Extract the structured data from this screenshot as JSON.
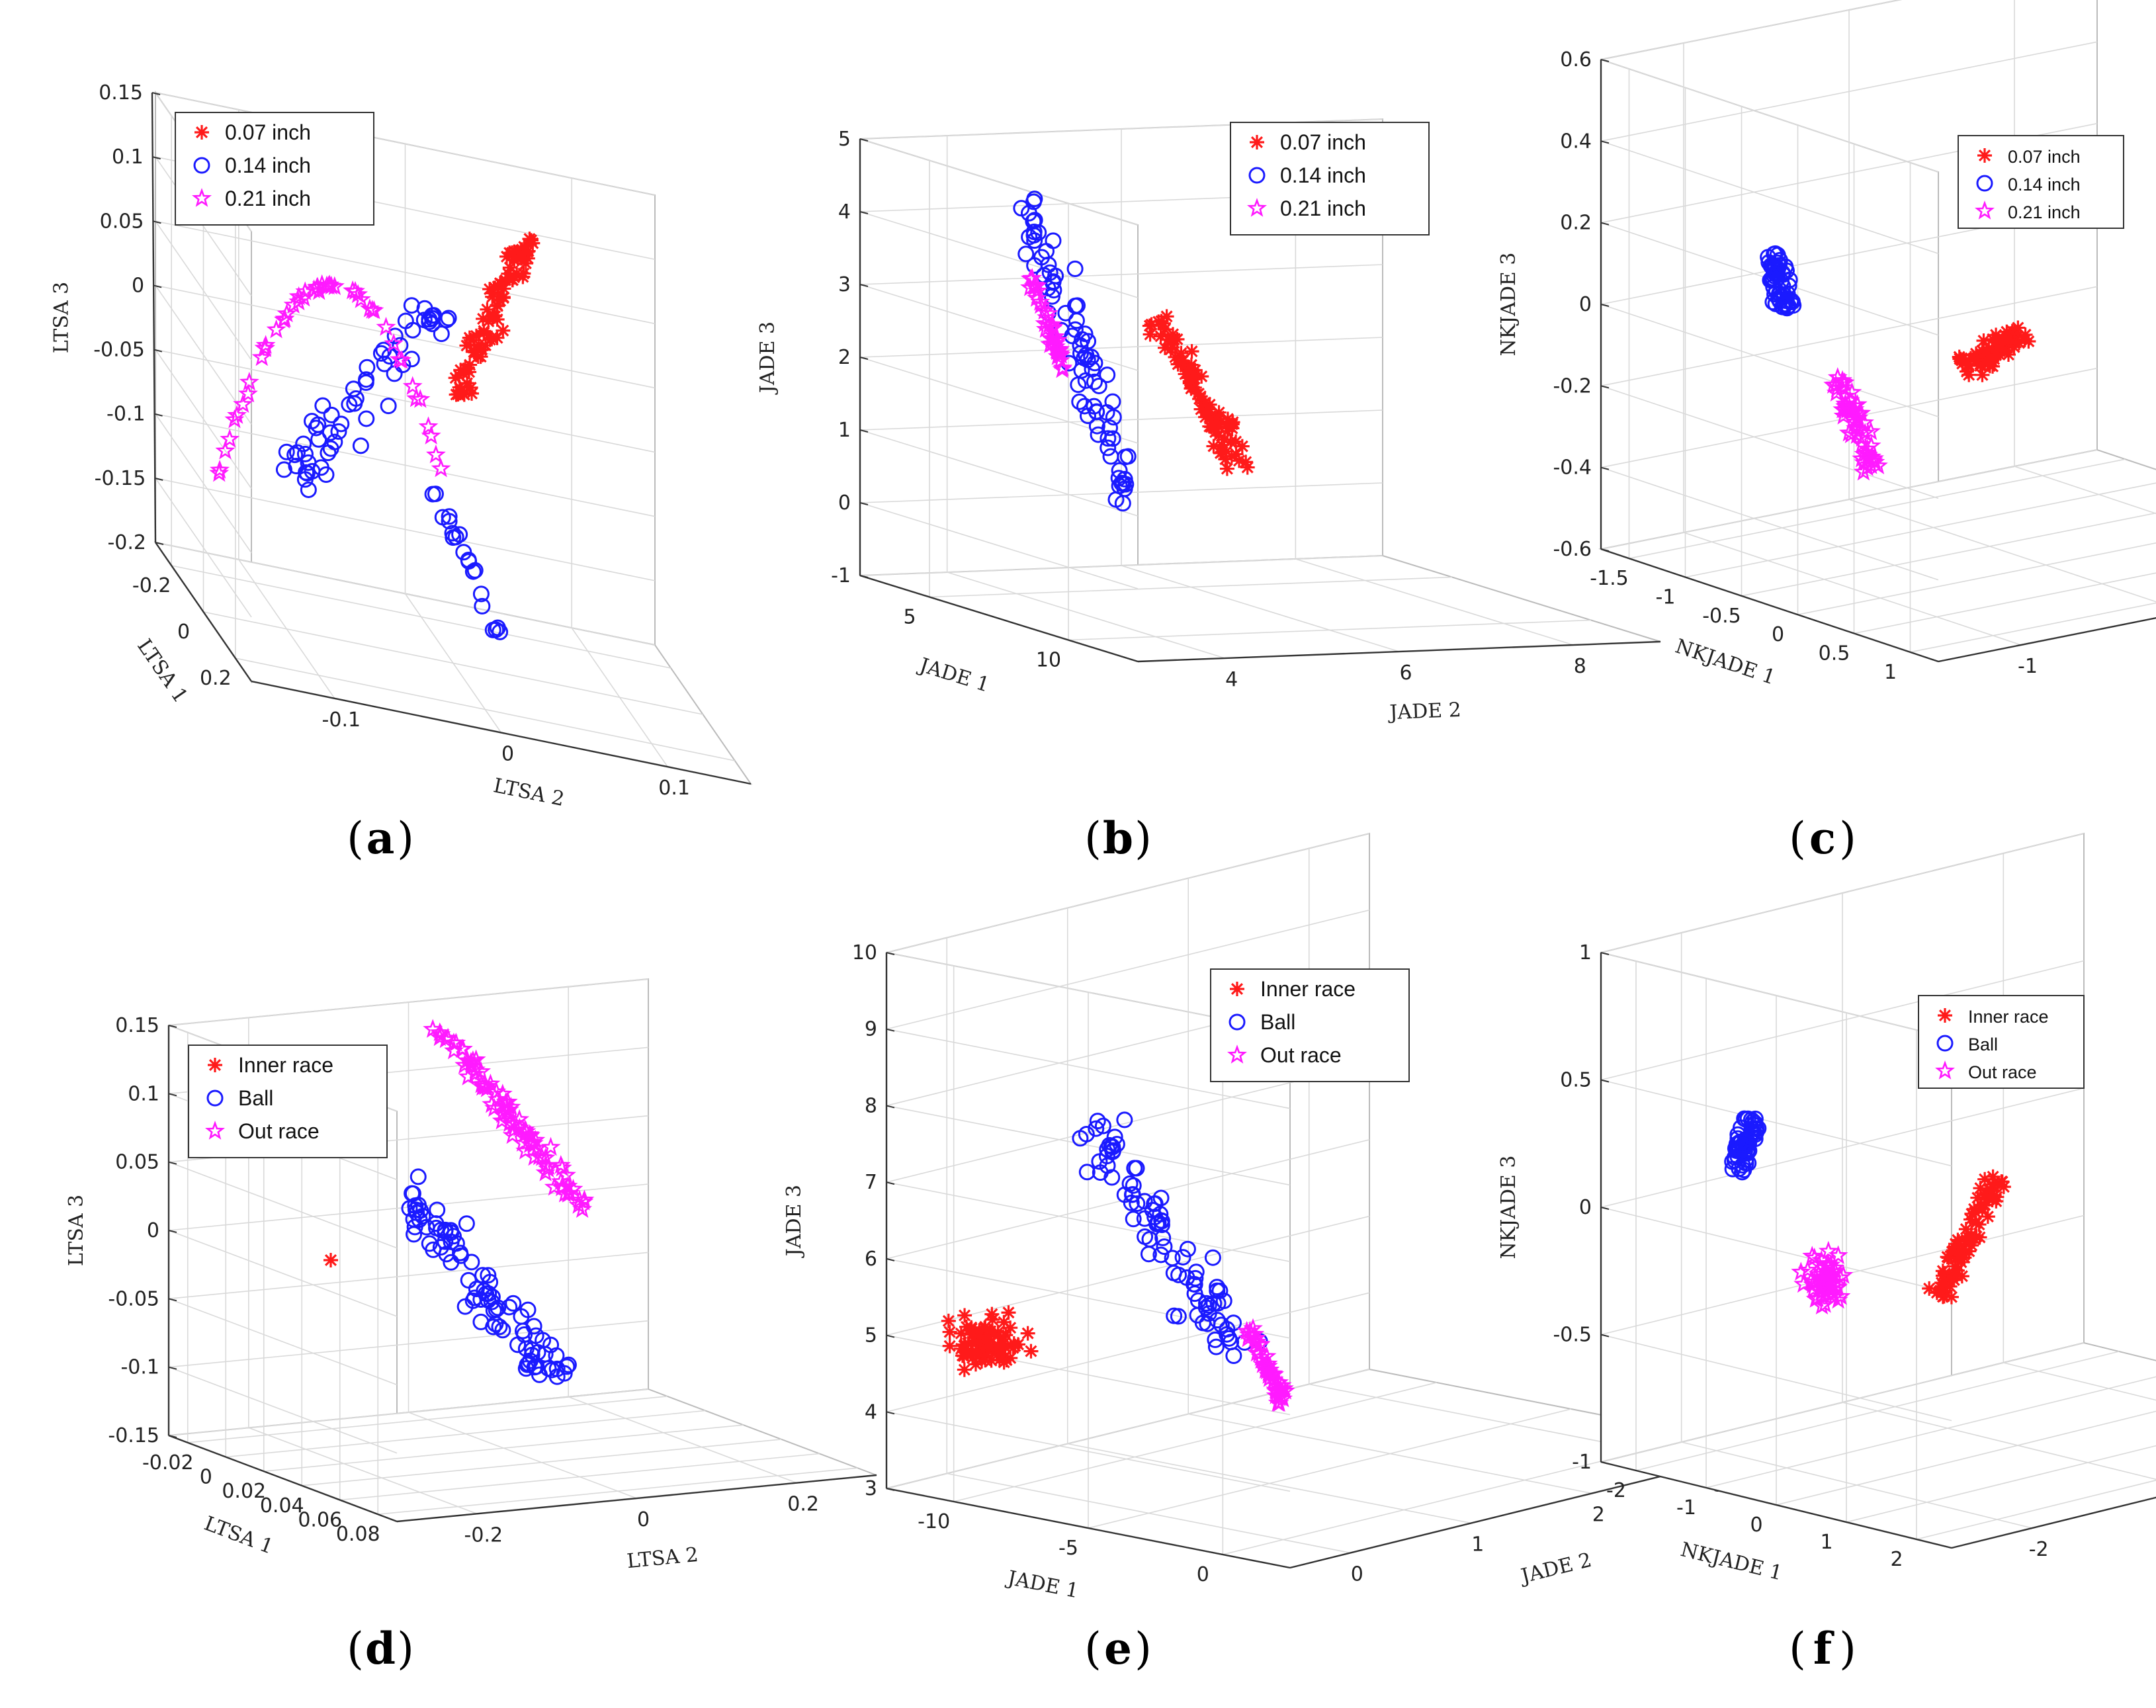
{
  "figure": {
    "colors": {
      "red": "#ff1a1a",
      "blue": "#1a1aff",
      "magenta": "#ff1aff",
      "axis": "#333333",
      "grid": "#d9d9d9"
    }
  },
  "chart_data": [
    {
      "id": "a",
      "type": "scatter3d",
      "caption": "a",
      "xlabel": "LTSA 1",
      "ylabel": "LTSA 2",
      "zlabel": "LTSA 3",
      "xticks": [
        "-0.2",
        "0",
        "0.2"
      ],
      "yticks": [
        "-0.1",
        "0",
        "0.1"
      ],
      "zticks": [
        "-0.2",
        "-0.15",
        "-0.1",
        "-0.05",
        "0",
        "0.05",
        "0.1",
        "0.15"
      ],
      "zlim": [
        -0.2,
        0.15
      ],
      "legend": [
        "0.07 inch",
        "0.14 inch",
        "0.21 inch"
      ],
      "legend_position": "top-left",
      "series": [
        {
          "name": "0.07 inch",
          "marker": "asterisk",
          "color": "red",
          "clusters": [
            {
              "z": [
                -0.06,
                0.08
              ],
              "spread": "diagonal-band",
              "count": 90
            }
          ]
        },
        {
          "name": "0.14 inch",
          "marker": "circle",
          "color": "blue",
          "clusters": [
            {
              "z": [
                -0.15,
                -0.02
              ],
              "spread": "wide",
              "count": 60
            },
            {
              "z": [
                -0.19,
                -0.14
              ],
              "spread": "tail",
              "count": 20
            }
          ]
        },
        {
          "name": "0.21 inch",
          "marker": "star",
          "color": "magenta",
          "clusters": [
            {
              "z": [
                -0.15,
                0.0
              ],
              "spread": "arch",
              "count": 50
            }
          ]
        }
      ]
    },
    {
      "id": "b",
      "type": "scatter3d",
      "caption": "b",
      "xlabel": "JADE 1",
      "ylabel": "JADE 2",
      "zlabel": "JADE 3",
      "xticks": [
        "5",
        "10"
      ],
      "yticks": [
        "4",
        "6",
        "8"
      ],
      "zticks": [
        "-1",
        "0",
        "1",
        "2",
        "3",
        "4",
        "5"
      ],
      "zlim": [
        -1,
        5
      ],
      "legend": [
        "0.07 inch",
        "0.14 inch",
        "0.21 inch"
      ],
      "legend_position": "top-right",
      "series": [
        {
          "name": "0.07 inch",
          "marker": "asterisk",
          "color": "red",
          "clusters": [
            {
              "z": [
                0.8,
                2.8
              ],
              "spread": "diagonal-band",
              "count": 90
            }
          ]
        },
        {
          "name": "0.14 inch",
          "marker": "circle",
          "color": "blue",
          "clusters": [
            {
              "z": [
                0.5,
                4.4
              ],
              "spread": "diagonal-band",
              "count": 80
            }
          ]
        },
        {
          "name": "0.21 inch",
          "marker": "star",
          "color": "magenta",
          "clusters": [
            {
              "z": [
                2.0,
                3.6
              ],
              "spread": "diagonal-band",
              "count": 40
            }
          ]
        }
      ]
    },
    {
      "id": "c",
      "type": "scatter3d",
      "caption": "c",
      "xlabel": "NKJADE 1",
      "ylabel": "NKJADE 2",
      "zlabel": "NKJADE 3",
      "xticks": [
        "-1.5",
        "-1",
        "-0.5",
        "0",
        "0.5",
        "1"
      ],
      "yticks": [
        "-1",
        "0",
        "1"
      ],
      "zticks": [
        "-0.6",
        "-0.4",
        "-0.2",
        "0",
        "0.2",
        "0.4",
        "0.6"
      ],
      "zlim": [
        -0.6,
        0.6
      ],
      "legend": [
        "0.07 inch",
        "0.14 inch",
        "0.21 inch"
      ],
      "legend_position": "top-right",
      "series": [
        {
          "name": "0.07 inch",
          "marker": "asterisk",
          "color": "red",
          "clusters": [
            {
              "z": [
                0.0,
                0.3
              ],
              "spread": "compact",
              "count": 70
            }
          ]
        },
        {
          "name": "0.14 inch",
          "marker": "circle",
          "color": "blue",
          "clusters": [
            {
              "z": [
                0.25,
                0.55
              ],
              "spread": "compact",
              "count": 60
            }
          ]
        },
        {
          "name": "0.21 inch",
          "marker": "star",
          "color": "magenta",
          "clusters": [
            {
              "z": [
                -0.35,
                0.1
              ],
              "spread": "compact",
              "count": 60
            }
          ]
        }
      ]
    },
    {
      "id": "d",
      "type": "scatter3d",
      "caption": "d",
      "xlabel": "LTSA 1",
      "ylabel": "LTSA 2",
      "zlabel": "LTSA 3",
      "xticks": [
        "-0.02",
        "0",
        "0.02",
        "0.04",
        "0.06",
        "0.08"
      ],
      "yticks": [
        "-0.2",
        "0",
        "0.2"
      ],
      "zticks": [
        "-0.15",
        "-0.1",
        "-0.05",
        "0",
        "0.05",
        "0.1",
        "0.15"
      ],
      "zlim": [
        -0.15,
        0.15
      ],
      "legend": [
        "Inner race",
        "Ball",
        "Out race"
      ],
      "legend_position": "top-left",
      "series": [
        {
          "name": "Inner race",
          "marker": "asterisk",
          "color": "red",
          "clusters": [
            {
              "z": [
                -0.02,
                -0.02
              ],
              "spread": "single",
              "count": 1
            }
          ]
        },
        {
          "name": "Ball",
          "marker": "circle",
          "color": "blue",
          "clusters": [
            {
              "z": [
                -0.13,
                0.04
              ],
              "spread": "diagonal-band",
              "count": 90
            }
          ]
        },
        {
          "name": "Out race",
          "marker": "star",
          "color": "magenta",
          "clusters": [
            {
              "z": [
                0.0,
                0.15
              ],
              "spread": "diagonal-band",
              "count": 90
            }
          ]
        }
      ]
    },
    {
      "id": "e",
      "type": "scatter3d",
      "caption": "e",
      "xlabel": "JADE 1",
      "ylabel": "JADE 2",
      "zlabel": "JADE 3",
      "xticks": [
        "-10",
        "-5",
        "0"
      ],
      "yticks": [
        "0",
        "1",
        "2",
        "3"
      ],
      "zticks": [
        "3",
        "4",
        "5",
        "6",
        "7",
        "8",
        "9",
        "10"
      ],
      "zlim": [
        3,
        10
      ],
      "legend": [
        "Inner race",
        "Ball",
        "Out race"
      ],
      "legend_position": "top-right",
      "series": [
        {
          "name": "Inner race",
          "marker": "asterisk",
          "color": "red",
          "clusters": [
            {
              "z": [
                4.6,
                7.1
              ],
              "spread": "compact",
              "count": 80
            }
          ]
        },
        {
          "name": "Ball",
          "marker": "circle",
          "color": "blue",
          "clusters": [
            {
              "z": [
                5.2,
                10.0
              ],
              "spread": "diagonal-band",
              "count": 90
            }
          ]
        },
        {
          "name": "Out race",
          "marker": "star",
          "color": "magenta",
          "clusters": [
            {
              "z": [
                4.9,
                6.5
              ],
              "spread": "diagonal-band",
              "count": 50
            }
          ]
        }
      ]
    },
    {
      "id": "f",
      "type": "scatter3d",
      "caption": "f",
      "xlabel": "NKJADE 1",
      "ylabel": "NKJADE 2",
      "zlabel": "NKJADE 3",
      "xticks": [
        "-2",
        "-1",
        "0",
        "1",
        "2"
      ],
      "yticks": [
        "-2",
        "0",
        "2"
      ],
      "zticks": [
        "-1",
        "-0.5",
        "0",
        "0.5",
        "1"
      ],
      "zlim": [
        -1,
        1
      ],
      "legend": [
        "Inner race",
        "Ball",
        "Out race"
      ],
      "legend_position": "top-right",
      "series": [
        {
          "name": "Inner race",
          "marker": "asterisk",
          "color": "red",
          "clusters": [
            {
              "z": [
                -0.1,
                0.8
              ],
              "spread": "diagonal-band",
              "count": 80
            }
          ]
        },
        {
          "name": "Ball",
          "marker": "circle",
          "color": "blue",
          "clusters": [
            {
              "z": [
                0.45,
                0.9
              ],
              "spread": "compact",
              "count": 60
            }
          ]
        },
        {
          "name": "Out race",
          "marker": "star",
          "color": "magenta",
          "clusters": [
            {
              "z": [
                -0.25,
                0.25
              ],
              "spread": "compact",
              "count": 60
            }
          ]
        }
      ]
    }
  ]
}
